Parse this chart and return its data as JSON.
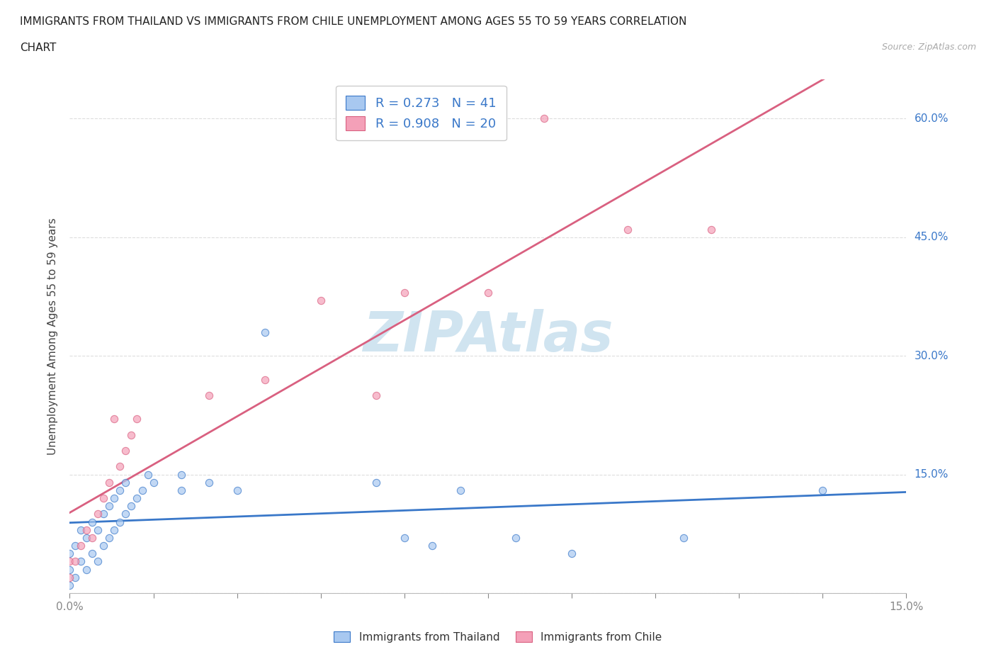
{
  "title_line1": "IMMIGRANTS FROM THAILAND VS IMMIGRANTS FROM CHILE UNEMPLOYMENT AMONG AGES 55 TO 59 YEARS CORRELATION",
  "title_line2": "CHART",
  "source_text": "Source: ZipAtlas.com",
  "ylabel": "Unemployment Among Ages 55 to 59 years",
  "xlim": [
    0,
    0.15
  ],
  "ylim": [
    0,
    0.65
  ],
  "xticks": [
    0.0,
    0.015,
    0.03,
    0.045,
    0.06,
    0.075,
    0.09,
    0.105,
    0.12,
    0.135,
    0.15
  ],
  "yticks": [
    0.0,
    0.15,
    0.3,
    0.45,
    0.6
  ],
  "yticklabels": [
    "",
    "15.0%",
    "30.0%",
    "45.0%",
    "60.0%"
  ],
  "thailand_color": "#a8c8f0",
  "chile_color": "#f4a0b8",
  "thailand_line_color": "#3a78c9",
  "chile_line_color": "#d96080",
  "watermark_color": "#d0e4f0",
  "R_thailand": 0.273,
  "N_thailand": 41,
  "R_chile": 0.908,
  "N_chile": 20,
  "thailand_x": [
    0.0,
    0.0,
    0.0,
    0.001,
    0.001,
    0.002,
    0.002,
    0.003,
    0.003,
    0.004,
    0.004,
    0.005,
    0.005,
    0.006,
    0.006,
    0.007,
    0.007,
    0.008,
    0.008,
    0.009,
    0.009,
    0.01,
    0.01,
    0.011,
    0.012,
    0.013,
    0.014,
    0.015,
    0.02,
    0.02,
    0.025,
    0.03,
    0.035,
    0.055,
    0.06,
    0.065,
    0.07,
    0.08,
    0.09,
    0.11,
    0.135
  ],
  "thailand_y": [
    0.01,
    0.03,
    0.05,
    0.02,
    0.06,
    0.04,
    0.08,
    0.03,
    0.07,
    0.05,
    0.09,
    0.04,
    0.08,
    0.06,
    0.1,
    0.07,
    0.11,
    0.08,
    0.12,
    0.09,
    0.13,
    0.1,
    0.14,
    0.11,
    0.12,
    0.13,
    0.15,
    0.14,
    0.13,
    0.15,
    0.14,
    0.13,
    0.33,
    0.14,
    0.07,
    0.06,
    0.13,
    0.07,
    0.05,
    0.07,
    0.13
  ],
  "chile_x": [
    0.0,
    0.0,
    0.001,
    0.002,
    0.003,
    0.004,
    0.005,
    0.006,
    0.007,
    0.008,
    0.009,
    0.01,
    0.011,
    0.012,
    0.025,
    0.035,
    0.045,
    0.055,
    0.075,
    0.1
  ],
  "chile_y": [
    0.02,
    0.04,
    0.04,
    0.06,
    0.08,
    0.07,
    0.1,
    0.12,
    0.14,
    0.22,
    0.16,
    0.18,
    0.2,
    0.22,
    0.25,
    0.27,
    0.37,
    0.25,
    0.38,
    0.46
  ],
  "chile_outlier_x": [
    0.085
  ],
  "chile_outlier_y": [
    0.6
  ],
  "chile_upper_x": [
    0.115
  ],
  "chile_upper_y": [
    0.46
  ],
  "chile_mid_x": [
    0.06
  ],
  "chile_mid_y": [
    0.38
  ],
  "background_color": "#ffffff",
  "grid_color": "#dddddd"
}
